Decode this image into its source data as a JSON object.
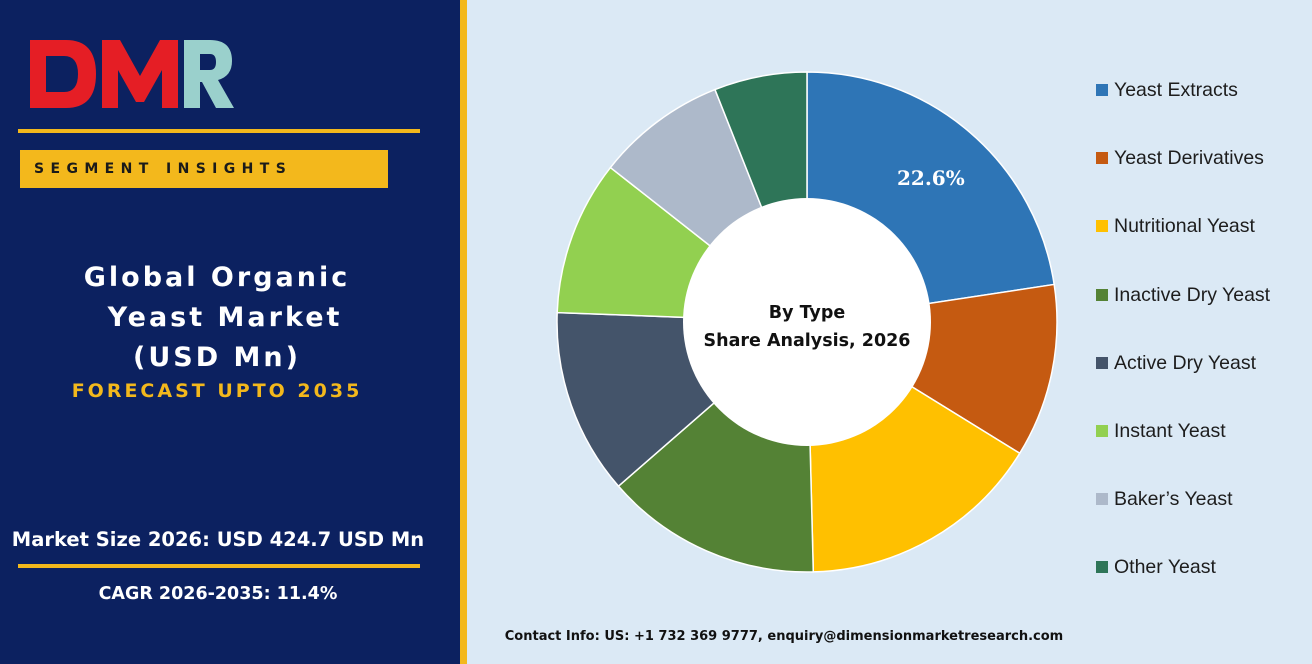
{
  "brand": {
    "logo_text": "DMR",
    "colors": {
      "left_panel": "#0c2160",
      "accent": "#f3b81c",
      "right_panel": "#dbe9f5",
      "logo_red": "#e51e25",
      "logo_teal": "#9ad0cc"
    }
  },
  "left_panel": {
    "badge": "SEGMENT INSIGHTS",
    "title_lines": [
      "Global Organic",
      "Yeast Market",
      "(USD Mn)"
    ],
    "forecast": "FORECAST UPTO 2035",
    "market_size": "Market Size 2026: USD 424.7 USD Mn",
    "cagr": "CAGR 2026-2035: 11.4%"
  },
  "chart_data": {
    "type": "pie",
    "variant": "donut",
    "center_label": [
      "By Type",
      "Share Analysis, 2026"
    ],
    "legend_position": "right",
    "slices": [
      {
        "label": "Yeast Extracts",
        "value": 22.6,
        "color": "#2e75b6",
        "data_label": "22.6%"
      },
      {
        "label": "Yeast Derivatives",
        "value": 11.2,
        "color": "#c55a11"
      },
      {
        "label": "Nutritional Yeast",
        "value": 15.8,
        "color": "#ffc000"
      },
      {
        "label": "Inactive Dry Yeast",
        "value": 14.0,
        "color": "#548235"
      },
      {
        "label": "Active Dry Yeast",
        "value": 12.0,
        "color": "#44546a"
      },
      {
        "label": "Instant Yeast",
        "value": 10.0,
        "color": "#92d050"
      },
      {
        "label": "Baker’s Yeast",
        "value": 8.4,
        "color": "#adb9ca"
      },
      {
        "label": "Other Yeast",
        "value": 6.0,
        "color": "#2e7558"
      }
    ]
  },
  "footer": {
    "contact": "Contact Info: US: +1 732 369 9777, enquiry@dimensionmarketresearch.com"
  }
}
